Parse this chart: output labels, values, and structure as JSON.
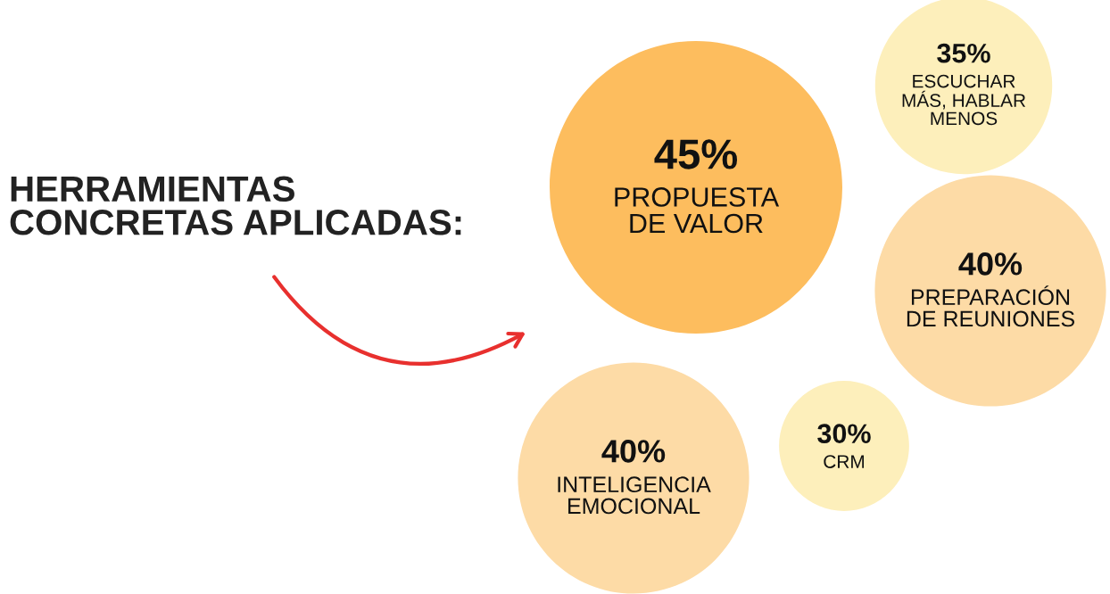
{
  "chart_data": {
    "type": "other",
    "title": "HERRAMIENTAS\nCONCRETAS APLICADAS:",
    "categories": [
      "PROPUESTA\nDE VALOR",
      "ESCUCHAR\nMÁS, HABLAR\nMENOS",
      "PREPARACIÓN\nDE REUNIONES",
      "INTELIGENCIA\nEMOCIONAL",
      "CRM"
    ],
    "values": [
      45,
      35,
      40,
      40,
      30
    ],
    "value_labels": [
      "45%",
      "35%",
      "40%",
      "40%",
      "30%"
    ],
    "colors": [
      "#fdbd5e",
      "#fdefbb",
      "#fddba6",
      "#fddba6",
      "#fdefbb"
    ]
  }
}
